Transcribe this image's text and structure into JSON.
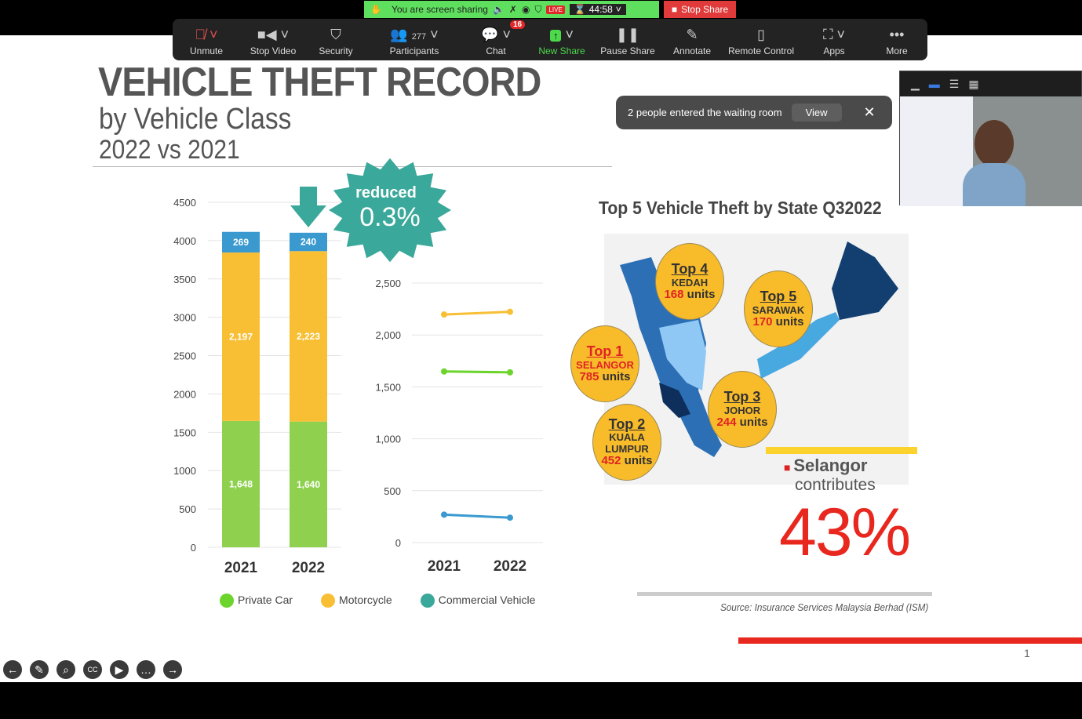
{
  "slide": {
    "title": "VEHICLE THEFT RECORD",
    "subtitle": "by Vehicle Class",
    "comparison": "2022 vs 2021",
    "page_number": "1"
  },
  "toolbar": {
    "items": [
      {
        "label": "Unmute",
        "icon": "microphone-muted-icon"
      },
      {
        "label": "Stop Video",
        "icon": "video-camera-icon"
      },
      {
        "label": "Security",
        "icon": "shield-icon"
      },
      {
        "label": "Participants",
        "icon": "participants-icon",
        "count": "277"
      },
      {
        "label": "Chat",
        "icon": "chat-icon",
        "badge": "16"
      },
      {
        "label": "New Share",
        "icon": "share-arrow-icon"
      },
      {
        "label": "Pause Share",
        "icon": "pause-icon"
      },
      {
        "label": "Annotate",
        "icon": "pencil-icon"
      },
      {
        "label": "Remote Control",
        "icon": "mouse-icon"
      },
      {
        "label": "Apps",
        "icon": "apps-icon"
      },
      {
        "label": "More",
        "icon": "ellipsis-icon"
      }
    ]
  },
  "share_bar": {
    "status": "You are screen sharing",
    "live": "LIVE",
    "timer": "44:58",
    "stop": "Stop Share"
  },
  "toast": {
    "message": "2 people entered the waiting room",
    "view": "View"
  },
  "callout": {
    "line1": "reduced",
    "line2": "0.3%"
  },
  "chart_data": [
    {
      "type": "bar",
      "stacked": true,
      "categories": [
        "2021",
        "2022"
      ],
      "ylim": [
        0,
        4500
      ],
      "yticks": [
        0,
        500,
        1000,
        1500,
        2000,
        2500,
        3000,
        3500,
        4000,
        4500
      ],
      "series": [
        {
          "name": "Private Car",
          "values": [
            1648,
            1640
          ],
          "labels": [
            "1,648",
            "1,640"
          ],
          "color": "#8fd14f"
        },
        {
          "name": "Motorcycle",
          "values": [
            2197,
            2223
          ],
          "labels": [
            "2,197",
            "2,223"
          ],
          "color": "#f8bf35"
        },
        {
          "name": "Commercial Vehicle",
          "values": [
            269,
            240
          ],
          "labels": [
            "269",
            "240"
          ],
          "color": "#3a9ad0"
        }
      ],
      "grid": true,
      "legend": "bottom"
    },
    {
      "type": "line",
      "categories": [
        "2021",
        "2022"
      ],
      "ylim": [
        0,
        2500
      ],
      "yticks": [
        "0",
        "500",
        "1,000",
        "1,500",
        "2,000",
        "2,500"
      ],
      "series": [
        {
          "name": "Motorcycle",
          "values": [
            2197,
            2223
          ],
          "color": "#f8bf35"
        },
        {
          "name": "Private Car",
          "values": [
            1648,
            1640
          ],
          "color": "#6cd42c"
        },
        {
          "name": "Commercial Vehicle",
          "values": [
            269,
            240
          ],
          "color": "#3a9ad0"
        }
      ],
      "grid": true
    }
  ],
  "legend": [
    "Private Car",
    "Motorcycle",
    "Commercial Vehicle"
  ],
  "map": {
    "title": "Top 5 Vehicle Theft by State Q32022",
    "bubbles": [
      {
        "rank": "Top 1",
        "state": "SELANGOR",
        "count": "785",
        "unit": "units"
      },
      {
        "rank": "Top 2",
        "state": "KUALA LUMPUR",
        "count": "452",
        "unit": "units"
      },
      {
        "rank": "Top 3",
        "state": "JOHOR",
        "count": "244",
        "unit": "units"
      },
      {
        "rank": "Top 4",
        "state": "KEDAH",
        "count": "168",
        "unit": "units"
      },
      {
        "rank": "Top 5",
        "state": "SARAWAK",
        "count": "170",
        "unit": "units"
      }
    ]
  },
  "highlight": {
    "state": "Selangor",
    "text": "contributes",
    "value": "43%"
  },
  "source": "Source:  Insurance Services Malaysia Berhad (ISM)"
}
